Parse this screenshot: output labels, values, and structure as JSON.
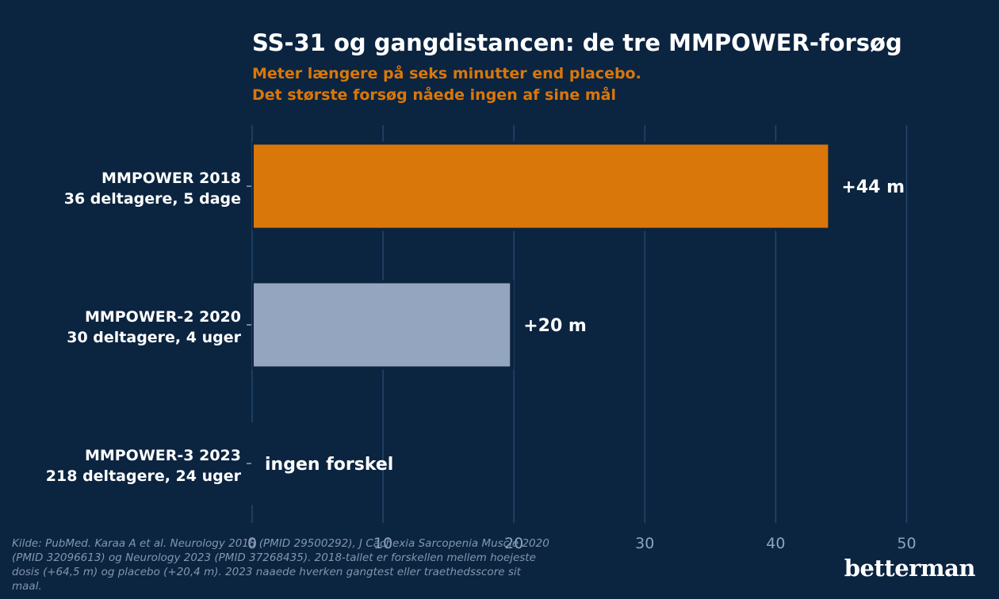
{
  "chart_data": {
    "type": "bar",
    "orientation": "horizontal",
    "title": "SS-31 og gangdistancen: de tre MMPOWER-forsøg",
    "subtitle": [
      "Meter længere på seks minutter end placebo.",
      "Det største forsøg nåede ingen af sine mål"
    ],
    "categories": [
      [
        "MMPOWER 2018",
        "36 deltagere, 5 dage"
      ],
      [
        "MMPOWER-2 2020",
        "30 deltagere, 4 uger"
      ],
      [
        "MMPOWER-3 2023",
        "218 deltagere, 24 uger"
      ]
    ],
    "values": [
      44,
      19.7,
      0
    ],
    "value_labels": [
      "+44 m",
      "+20 m",
      "ingen forskel"
    ],
    "colors": [
      "#d9770a",
      "#94a5bf",
      "#94a5bf"
    ],
    "xlim": [
      0,
      55
    ],
    "xticks": [
      0,
      10,
      20,
      30,
      40,
      50
    ],
    "grid": "vertical"
  },
  "footnote": "Kilde: PubMed. Karaa A et al. Neurology 2018 (PMID 29500292), J Cachexia Sarcopenia Muscle 2020 (PMID 32096613) og Neurology 2023 (PMID 37268435). 2018-tallet er forskellen mellem hoejeste dosis (+64,5 m) og placebo (+20,4 m). 2023 naaede hverken gangtest eller traethedsscore sit maal.",
  "brand": "betterman"
}
